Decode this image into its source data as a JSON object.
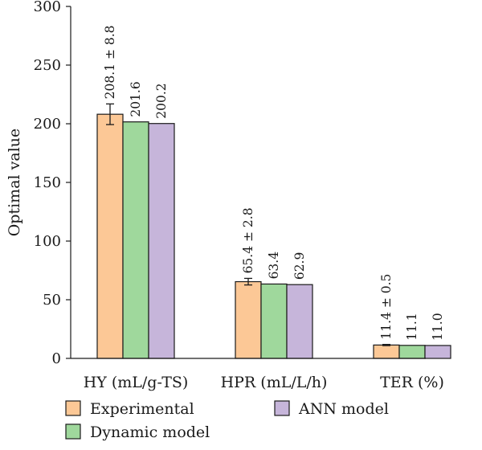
{
  "chart_data": {
    "type": "bar",
    "categories": [
      "HY (mL/g-TS)",
      "HPR (mL/L/h)",
      "TER (%)"
    ],
    "ylabel": "Optimal value",
    "xlabel": "",
    "ylim": [
      0,
      300
    ],
    "yticks": [
      0,
      50,
      100,
      150,
      200,
      250,
      300
    ],
    "grid": false,
    "legend_position": "bottom",
    "series": [
      {
        "name": "Experimental",
        "color": "#fcc896",
        "values": [
          208.1,
          65.4,
          11.4
        ],
        "errors": [
          8.8,
          2.8,
          0.5
        ],
        "labels": [
          "208.1 ± 8.8",
          "65.4 ± 2.8",
          "11.4 ± 0.5"
        ]
      },
      {
        "name": "Dynamic model",
        "color": "#9fd89c",
        "values": [
          201.6,
          63.4,
          11.1
        ],
        "labels": [
          "201.6",
          "63.4",
          "11.1"
        ]
      },
      {
        "name": "ANN model",
        "color": "#c6b5da",
        "values": [
          200.2,
          62.9,
          11.0
        ],
        "labels": [
          "200.2",
          "62.9",
          "11.0"
        ]
      }
    ]
  }
}
